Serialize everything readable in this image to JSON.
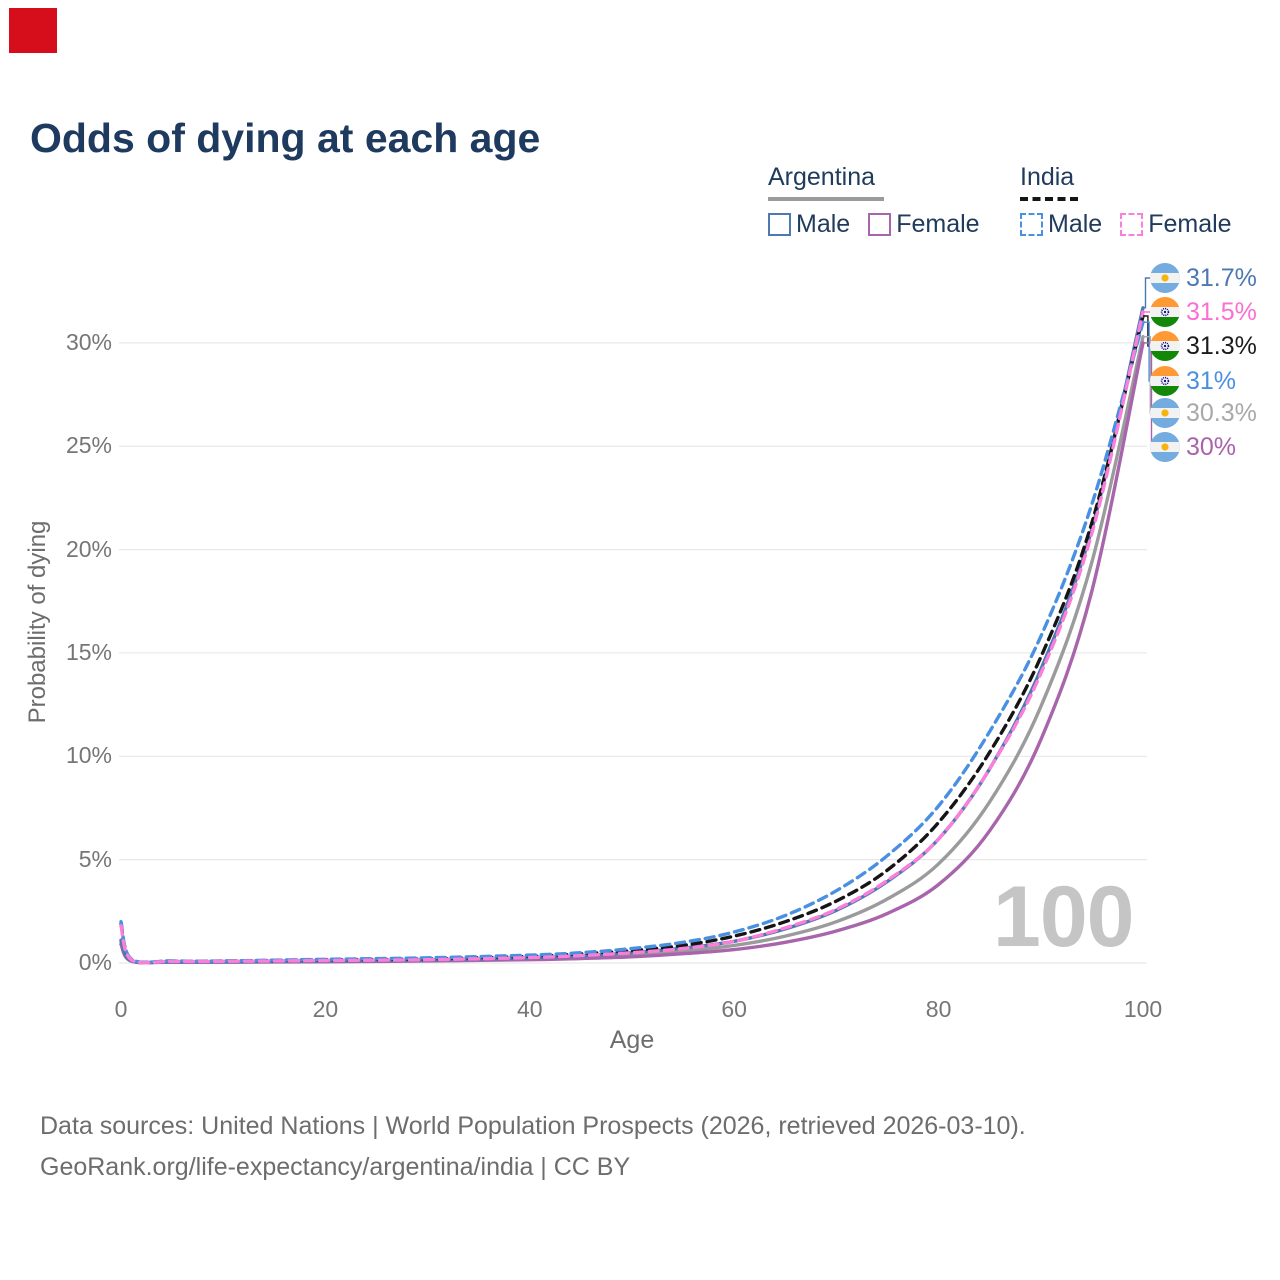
{
  "marker": {
    "color": "#d60e1c"
  },
  "title": "Odds of dying at each age",
  "legend": {
    "argentina": {
      "label": "Argentina",
      "male": "Male",
      "female": "Female"
    },
    "india": {
      "label": "India",
      "male": "Male",
      "female": "Female"
    }
  },
  "watermark": "100",
  "footer": {
    "line1": "Data sources: United Nations | World Population Prospects (2026, retrieved 2026-03-10).",
    "line2": "GeoRank.org/life-expectancy/argentina/india | CC BY"
  },
  "chart_data": {
    "type": "line",
    "title": "Odds of dying at each age",
    "xlabel": "Age",
    "ylabel": "Probability of dying",
    "xlim": [
      0,
      100
    ],
    "ylim_pct": [
      0,
      33
    ],
    "x_ticks": [
      0,
      20,
      40,
      60,
      80,
      100
    ],
    "y_ticks": [
      {
        "v": 0,
        "label": "0%"
      },
      {
        "v": 5,
        "label": "5%"
      },
      {
        "v": 10,
        "label": "10%"
      },
      {
        "v": 15,
        "label": "15%"
      },
      {
        "v": 20,
        "label": "20%"
      },
      {
        "v": 25,
        "label": "25%"
      },
      {
        "v": 30,
        "label": "30%"
      }
    ],
    "grid": true,
    "series": [
      {
        "id": "argentina_total",
        "name": "Argentina",
        "country": "argentina",
        "dash": false,
        "color": "#9b9b9b",
        "end_pct": 30.3,
        "points": [
          [
            0,
            1.0
          ],
          [
            1,
            0.1
          ],
          [
            5,
            0.05
          ],
          [
            10,
            0.05
          ],
          [
            20,
            0.08
          ],
          [
            30,
            0.12
          ],
          [
            40,
            0.2
          ],
          [
            45,
            0.28
          ],
          [
            50,
            0.4
          ],
          [
            55,
            0.58
          ],
          [
            60,
            0.85
          ],
          [
            65,
            1.3
          ],
          [
            70,
            2.0
          ],
          [
            75,
            3.1
          ],
          [
            80,
            4.8
          ],
          [
            85,
            7.8
          ],
          [
            90,
            12.4
          ],
          [
            95,
            19.4
          ],
          [
            100,
            30.3
          ]
        ]
      },
      {
        "id": "argentina_female",
        "name": "Argentina Female",
        "country": "argentina",
        "dash": false,
        "color": "#a865ab",
        "end_pct": 30.0,
        "points": [
          [
            0,
            0.9
          ],
          [
            1,
            0.09
          ],
          [
            5,
            0.04
          ],
          [
            10,
            0.04
          ],
          [
            20,
            0.06
          ],
          [
            30,
            0.1
          ],
          [
            40,
            0.16
          ],
          [
            45,
            0.22
          ],
          [
            50,
            0.3
          ],
          [
            55,
            0.45
          ],
          [
            60,
            0.65
          ],
          [
            65,
            1.0
          ],
          [
            70,
            1.55
          ],
          [
            75,
            2.4
          ],
          [
            80,
            3.8
          ],
          [
            85,
            6.4
          ],
          [
            90,
            10.8
          ],
          [
            95,
            18.0
          ],
          [
            100,
            30.0
          ]
        ]
      },
      {
        "id": "argentina_male",
        "name": "Argentina Male",
        "country": "argentina",
        "dash": false,
        "color": "#4c79b2",
        "end_pct": 31.7,
        "points": [
          [
            0,
            1.1
          ],
          [
            1,
            0.12
          ],
          [
            5,
            0.06
          ],
          [
            10,
            0.06
          ],
          [
            20,
            0.1
          ],
          [
            30,
            0.15
          ],
          [
            40,
            0.25
          ],
          [
            45,
            0.35
          ],
          [
            50,
            0.5
          ],
          [
            55,
            0.72
          ],
          [
            60,
            1.05
          ],
          [
            65,
            1.65
          ],
          [
            70,
            2.55
          ],
          [
            75,
            3.95
          ],
          [
            80,
            6.0
          ],
          [
            85,
            9.4
          ],
          [
            90,
            14.2
          ],
          [
            95,
            21.0
          ],
          [
            100,
            31.7
          ]
        ]
      },
      {
        "id": "india_total",
        "name": "India",
        "country": "india",
        "dash": true,
        "color": "#151515",
        "end_pct": 31.3,
        "points": [
          [
            0,
            1.9
          ],
          [
            1,
            0.18
          ],
          [
            5,
            0.09
          ],
          [
            10,
            0.09
          ],
          [
            20,
            0.15
          ],
          [
            30,
            0.2
          ],
          [
            40,
            0.32
          ],
          [
            45,
            0.44
          ],
          [
            50,
            0.6
          ],
          [
            55,
            0.85
          ],
          [
            60,
            1.3
          ],
          [
            65,
            2.0
          ],
          [
            70,
            3.0
          ],
          [
            75,
            4.5
          ],
          [
            80,
            6.8
          ],
          [
            85,
            10.2
          ],
          [
            90,
            14.8
          ],
          [
            95,
            21.3
          ],
          [
            100,
            31.3
          ]
        ]
      },
      {
        "id": "india_male",
        "name": "India Male",
        "country": "india",
        "dash": true,
        "color": "#4a90e2",
        "end_pct": 31.0,
        "points": [
          [
            0,
            2.0
          ],
          [
            1,
            0.2
          ],
          [
            5,
            0.1
          ],
          [
            10,
            0.1
          ],
          [
            20,
            0.18
          ],
          [
            30,
            0.25
          ],
          [
            40,
            0.38
          ],
          [
            45,
            0.5
          ],
          [
            50,
            0.7
          ],
          [
            55,
            1.0
          ],
          [
            60,
            1.5
          ],
          [
            65,
            2.3
          ],
          [
            70,
            3.5
          ],
          [
            75,
            5.2
          ],
          [
            80,
            7.6
          ],
          [
            85,
            11.2
          ],
          [
            90,
            15.8
          ],
          [
            95,
            22.2
          ],
          [
            100,
            31.0
          ]
        ]
      },
      {
        "id": "india_female",
        "name": "India Female",
        "country": "india",
        "dash": true,
        "color": "#f97fd9",
        "end_pct": 31.5,
        "points": [
          [
            0,
            1.8
          ],
          [
            1,
            0.16
          ],
          [
            5,
            0.08
          ],
          [
            10,
            0.08
          ],
          [
            20,
            0.12
          ],
          [
            30,
            0.16
          ],
          [
            40,
            0.26
          ],
          [
            45,
            0.36
          ],
          [
            50,
            0.5
          ],
          [
            55,
            0.7
          ],
          [
            60,
            1.05
          ],
          [
            65,
            1.7
          ],
          [
            70,
            2.6
          ],
          [
            75,
            4.0
          ],
          [
            80,
            6.0
          ],
          [
            85,
            9.4
          ],
          [
            90,
            14.0
          ],
          [
            95,
            20.8
          ],
          [
            100,
            31.5
          ]
        ]
      }
    ],
    "end_labels": [
      {
        "text": "31.7%",
        "color": "#4c79b2",
        "flag": "argentina",
        "series": "argentina_male"
      },
      {
        "text": "31.5%",
        "color": "#fb6ed3",
        "flag": "india",
        "series": "india_female"
      },
      {
        "text": "31.3%",
        "color": "#1c1c1c",
        "flag": "india",
        "series": "india_total"
      },
      {
        "text": "31%",
        "color": "#4a90e2",
        "flag": "india",
        "series": "india_male"
      },
      {
        "text": "30.3%",
        "color": "#a9a9a9",
        "flag": "argentina",
        "series": "argentina_total"
      },
      {
        "text": "30%",
        "color": "#aa62ab",
        "flag": "argentina",
        "series": "argentina_female"
      }
    ],
    "legend_position": "top-right",
    "gridline_color": "#e8e8e8",
    "flag_colors": {
      "argentina_blue": "#74acdf",
      "argentina_sun": "#f6b40e",
      "india_saffron": "#ff9933",
      "india_green": "#138808",
      "india_navy": "#000088"
    }
  }
}
